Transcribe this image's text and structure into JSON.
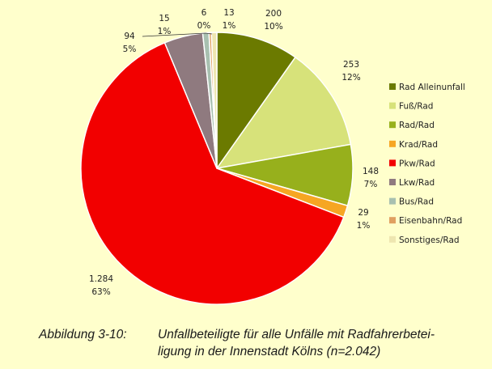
{
  "chart_data": {
    "type": "pie",
    "categories": [
      "Rad Alleinunfall",
      "Fuß/Rad",
      "Rad/Rad",
      "Krad/Rad",
      "Pkw/Rad",
      "Lkw/Rad",
      "Bus/Rad",
      "Eisenbahn/Rad",
      "Sonstiges/Rad"
    ],
    "values": [
      200,
      253,
      148,
      29,
      1284,
      94,
      15,
      6,
      13
    ],
    "value_labels": [
      "200",
      "253",
      "148",
      "29",
      "1.284",
      "94",
      "15",
      "6",
      "13"
    ],
    "percent_labels": [
      "10%",
      "12%",
      "7%",
      "1%",
      "63%",
      "5%",
      "1%",
      "0%",
      "1%"
    ],
    "colors": [
      "#6b7a00",
      "#d7e27a",
      "#97b01c",
      "#f6a623",
      "#f20000",
      "#8f7a7f",
      "#a8c0b0",
      "#e0a060",
      "#eee6b0"
    ],
    "legend": "right"
  },
  "caption": {
    "number": "Abbildung 3-10:",
    "line1": "Unfallbeteiligte für alle Unfälle mit Radfahrerbetei-",
    "line2": "ligung in der Innenstadt Kölns (n=2.042)"
  }
}
